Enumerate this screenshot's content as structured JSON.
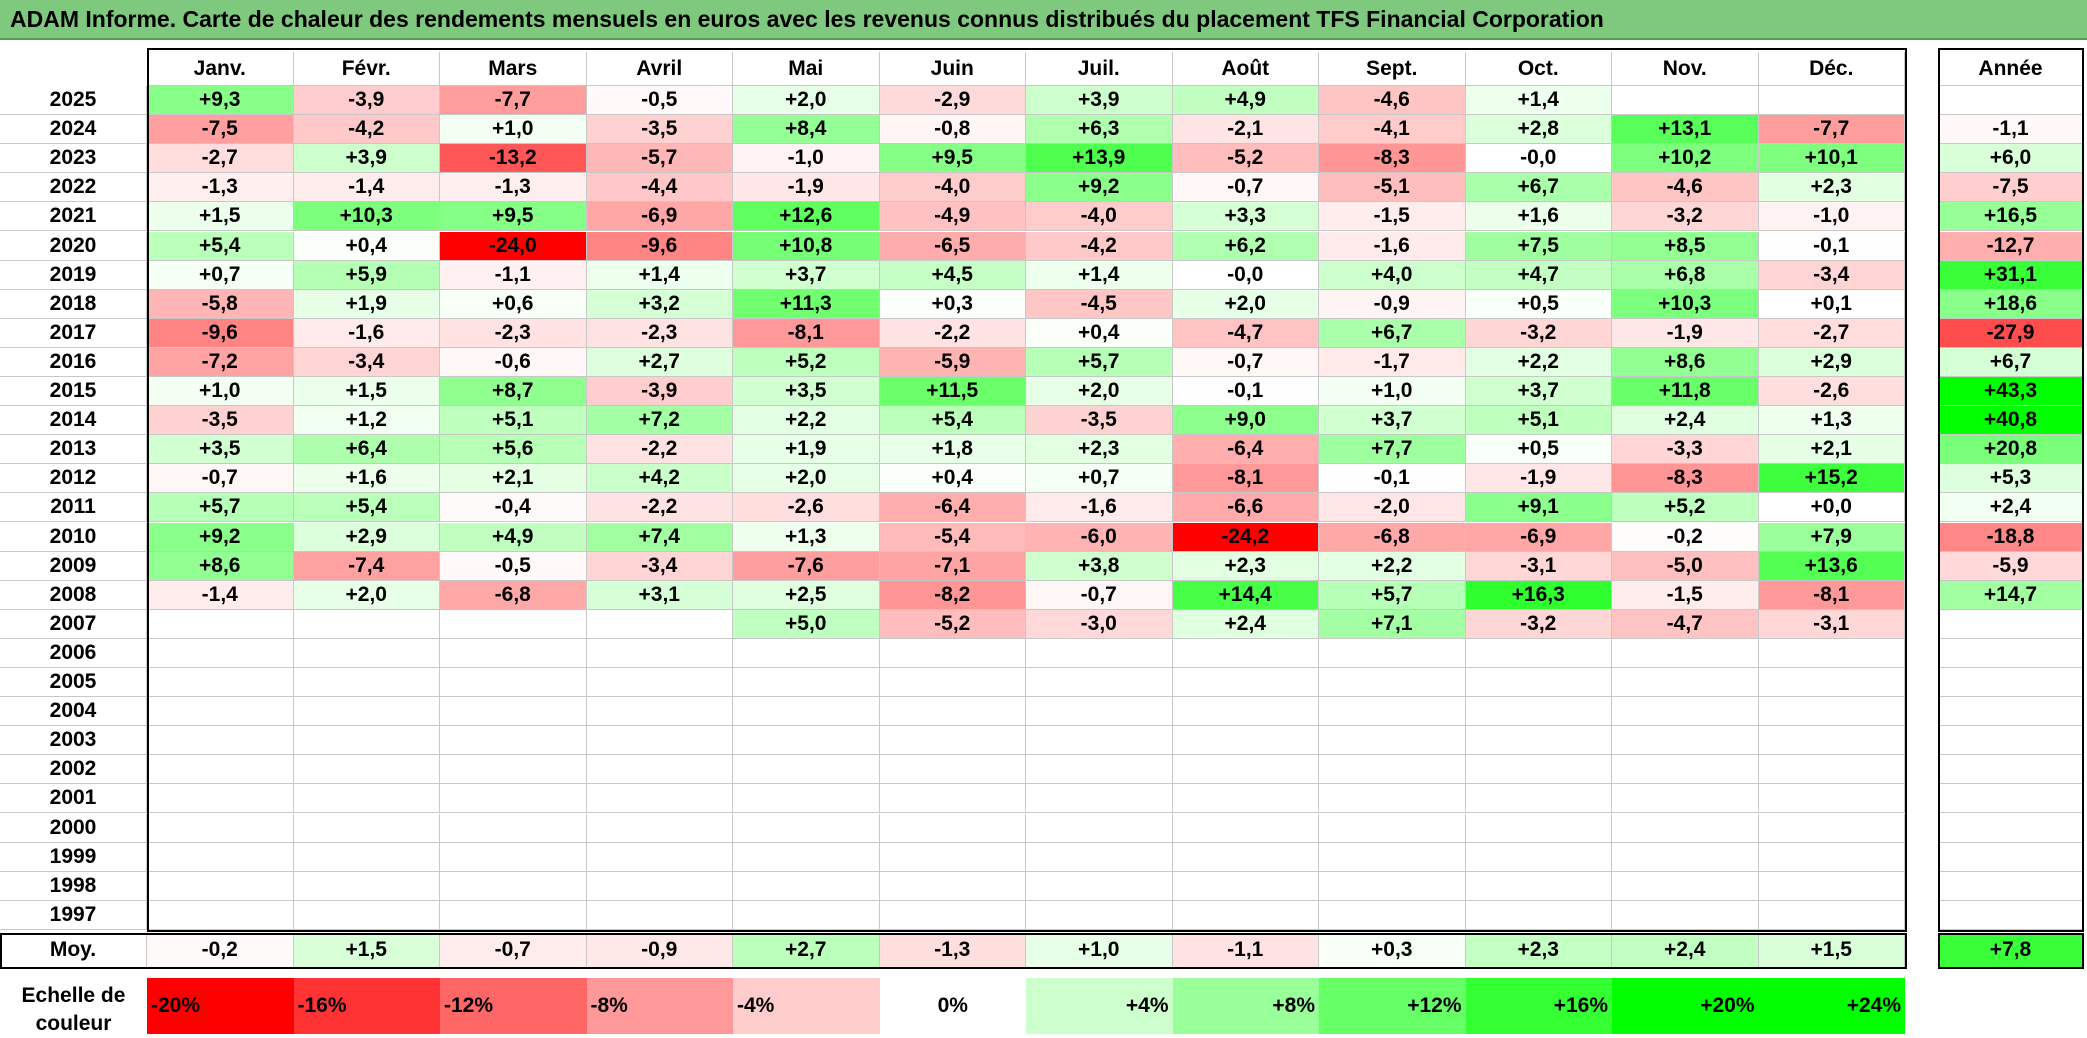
{
  "title": "ADAM Informe. Carte de chaleur des rendements mensuels en euros avec les revenus connus distribués du placement TFS Financial Corporation",
  "chart_data": {
    "type": "heatmap",
    "columns": [
      "Janv.",
      "Févr.",
      "Mars",
      "Avril",
      "Mai",
      "Juin",
      "Juil.",
      "Août",
      "Sept.",
      "Oct.",
      "Nov.",
      "Déc."
    ],
    "year_header": "Année",
    "rows": [
      {
        "year": "2025",
        "values": [
          "+9,3",
          "-3,9",
          "-7,7",
          "-0,5",
          "+2,0",
          "-2,9",
          "+3,9",
          "+4,9",
          "-4,6",
          "+1,4",
          "",
          ""
        ],
        "annual": ""
      },
      {
        "year": "2024",
        "values": [
          "-7,5",
          "-4,2",
          "+1,0",
          "-3,5",
          "+8,4",
          "-0,8",
          "+6,3",
          "-2,1",
          "-4,1",
          "+2,8",
          "+13,1",
          "-7,7"
        ],
        "annual": "-1,1"
      },
      {
        "year": "2023",
        "values": [
          "-2,7",
          "+3,9",
          "-13,2",
          "-5,7",
          "-1,0",
          "+9,5",
          "+13,9",
          "-5,2",
          "-8,3",
          "-0,0",
          "+10,2",
          "+10,1"
        ],
        "annual": "+6,0"
      },
      {
        "year": "2022",
        "values": [
          "-1,3",
          "-1,4",
          "-1,3",
          "-4,4",
          "-1,9",
          "-4,0",
          "+9,2",
          "-0,7",
          "-5,1",
          "+6,7",
          "-4,6",
          "+2,3"
        ],
        "annual": "-7,5"
      },
      {
        "year": "2021",
        "values": [
          "+1,5",
          "+10,3",
          "+9,5",
          "-6,9",
          "+12,6",
          "-4,9",
          "-4,0",
          "+3,3",
          "-1,5",
          "+1,6",
          "-3,2",
          "-1,0"
        ],
        "annual": "+16,5"
      },
      {
        "year": "2020",
        "values": [
          "+5,4",
          "+0,4",
          "-24,0",
          "-9,6",
          "+10,8",
          "-6,5",
          "-4,2",
          "+6,2",
          "-1,6",
          "+7,5",
          "+8,5",
          "-0,1"
        ],
        "annual": "-12,7"
      },
      {
        "year": "2019",
        "values": [
          "+0,7",
          "+5,9",
          "-1,1",
          "+1,4",
          "+3,7",
          "+4,5",
          "+1,4",
          "-0,0",
          "+4,0",
          "+4,7",
          "+6,8",
          "-3,4"
        ],
        "annual": "+31,1"
      },
      {
        "year": "2018",
        "values": [
          "-5,8",
          "+1,9",
          "+0,6",
          "+3,2",
          "+11,3",
          "+0,3",
          "-4,5",
          "+2,0",
          "-0,9",
          "+0,5",
          "+10,3",
          "+0,1"
        ],
        "annual": "+18,6"
      },
      {
        "year": "2017",
        "values": [
          "-9,6",
          "-1,6",
          "-2,3",
          "-2,3",
          "-8,1",
          "-2,2",
          "+0,4",
          "-4,7",
          "+6,7",
          "-3,2",
          "-1,9",
          "-2,7"
        ],
        "annual": "-27,9"
      },
      {
        "year": "2016",
        "values": [
          "-7,2",
          "-3,4",
          "-0,6",
          "+2,7",
          "+5,2",
          "-5,9",
          "+5,7",
          "-0,7",
          "-1,7",
          "+2,2",
          "+8,6",
          "+2,9"
        ],
        "annual": "+6,7"
      },
      {
        "year": "2015",
        "values": [
          "+1,0",
          "+1,5",
          "+8,7",
          "-3,9",
          "+3,5",
          "+11,5",
          "+2,0",
          "-0,1",
          "+1,0",
          "+3,7",
          "+11,8",
          "-2,6"
        ],
        "annual": "+43,3"
      },
      {
        "year": "2014",
        "values": [
          "-3,5",
          "+1,2",
          "+5,1",
          "+7,2",
          "+2,2",
          "+5,4",
          "-3,5",
          "+9,0",
          "+3,7",
          "+5,1",
          "+2,4",
          "+1,3"
        ],
        "annual": "+40,8"
      },
      {
        "year": "2013",
        "values": [
          "+3,5",
          "+6,4",
          "+5,6",
          "-2,2",
          "+1,9",
          "+1,8",
          "+2,3",
          "-6,4",
          "+7,7",
          "+0,5",
          "-3,3",
          "+2,1"
        ],
        "annual": "+20,8"
      },
      {
        "year": "2012",
        "values": [
          "-0,7",
          "+1,6",
          "+2,1",
          "+4,2",
          "+2,0",
          "+0,4",
          "+0,7",
          "-8,1",
          "-0,1",
          "-1,9",
          "-8,3",
          "+15,2"
        ],
        "annual": "+5,3"
      },
      {
        "year": "2011",
        "values": [
          "+5,7",
          "+5,4",
          "-0,4",
          "-2,2",
          "-2,6",
          "-6,4",
          "-1,6",
          "-6,6",
          "-2,0",
          "+9,1",
          "+5,2",
          "+0,0"
        ],
        "annual": "+2,4"
      },
      {
        "year": "2010",
        "values": [
          "+9,2",
          "+2,9",
          "+4,9",
          "+7,4",
          "+1,3",
          "-5,4",
          "-6,0",
          "-24,2",
          "-6,8",
          "-6,9",
          "-0,2",
          "+7,9"
        ],
        "annual": "-18,8"
      },
      {
        "year": "2009",
        "values": [
          "+8,6",
          "-7,4",
          "-0,5",
          "-3,4",
          "-7,6",
          "-7,1",
          "+3,8",
          "+2,3",
          "+2,2",
          "-3,1",
          "-5,0",
          "+13,6"
        ],
        "annual": "-5,9"
      },
      {
        "year": "2008",
        "values": [
          "-1,4",
          "+2,0",
          "-6,8",
          "+3,1",
          "+2,5",
          "-8,2",
          "-0,7",
          "+14,4",
          "+5,7",
          "+16,3",
          "-1,5",
          "-8,1"
        ],
        "annual": "+14,7"
      },
      {
        "year": "2007",
        "values": [
          "",
          "",
          "",
          "",
          "+5,0",
          "-5,2",
          "-3,0",
          "+2,4",
          "+7,1",
          "-3,2",
          "-4,7",
          "-3,1"
        ],
        "annual": ""
      },
      {
        "year": "2006",
        "values": [
          "",
          "",
          "",
          "",
          "",
          "",
          "",
          "",
          "",
          "",
          "",
          ""
        ],
        "annual": ""
      },
      {
        "year": "2005",
        "values": [
          "",
          "",
          "",
          "",
          "",
          "",
          "",
          "",
          "",
          "",
          "",
          ""
        ],
        "annual": ""
      },
      {
        "year": "2004",
        "values": [
          "",
          "",
          "",
          "",
          "",
          "",
          "",
          "",
          "",
          "",
          "",
          ""
        ],
        "annual": ""
      },
      {
        "year": "2003",
        "values": [
          "",
          "",
          "",
          "",
          "",
          "",
          "",
          "",
          "",
          "",
          "",
          ""
        ],
        "annual": ""
      },
      {
        "year": "2002",
        "values": [
          "",
          "",
          "",
          "",
          "",
          "",
          "",
          "",
          "",
          "",
          "",
          ""
        ],
        "annual": ""
      },
      {
        "year": "2001",
        "values": [
          "",
          "",
          "",
          "",
          "",
          "",
          "",
          "",
          "",
          "",
          "",
          ""
        ],
        "annual": ""
      },
      {
        "year": "2000",
        "values": [
          "",
          "",
          "",
          "",
          "",
          "",
          "",
          "",
          "",
          "",
          "",
          ""
        ],
        "annual": ""
      },
      {
        "year": "1999",
        "values": [
          "",
          "",
          "",
          "",
          "",
          "",
          "",
          "",
          "",
          "",
          "",
          ""
        ],
        "annual": ""
      },
      {
        "year": "1998",
        "values": [
          "",
          "",
          "",
          "",
          "",
          "",
          "",
          "",
          "",
          "",
          "",
          ""
        ],
        "annual": ""
      },
      {
        "year": "1997",
        "values": [
          "",
          "",
          "",
          "",
          "",
          "",
          "",
          "",
          "",
          "",
          "",
          ""
        ],
        "annual": ""
      }
    ],
    "average": {
      "label": "Moy.",
      "values": [
        "-0,2",
        "+1,5",
        "-0,7",
        "-0,9",
        "+2,7",
        "-1,3",
        "+1,0",
        "-1,1",
        "+0,3",
        "+2,3",
        "+2,4",
        "+1,5"
      ],
      "annual": "+7,8"
    },
    "color_scale": {
      "label": "Echelle de couleur",
      "stops": [
        {
          "label": "-20%",
          "color": "#ff0000"
        },
        {
          "label": "-16%",
          "color": "#ff3333"
        },
        {
          "label": "-12%",
          "color": "#ff6666"
        },
        {
          "label": "-8%",
          "color": "#ff9999"
        },
        {
          "label": "-4%",
          "color": "#ffcccc"
        },
        {
          "label": "0%",
          "color": "#ffffff"
        },
        {
          "label": "+4%",
          "color": "#ccffcc"
        },
        {
          "label": "+8%",
          "color": "#99ff99"
        },
        {
          "label": "+12%",
          "color": "#66ff66"
        },
        {
          "label": "+16%",
          "color": "#33ff33"
        },
        {
          "label": "+20%",
          "color": "#00ff00"
        },
        {
          "label": "+24%",
          "color": "#00ff00"
        }
      ]
    }
  }
}
